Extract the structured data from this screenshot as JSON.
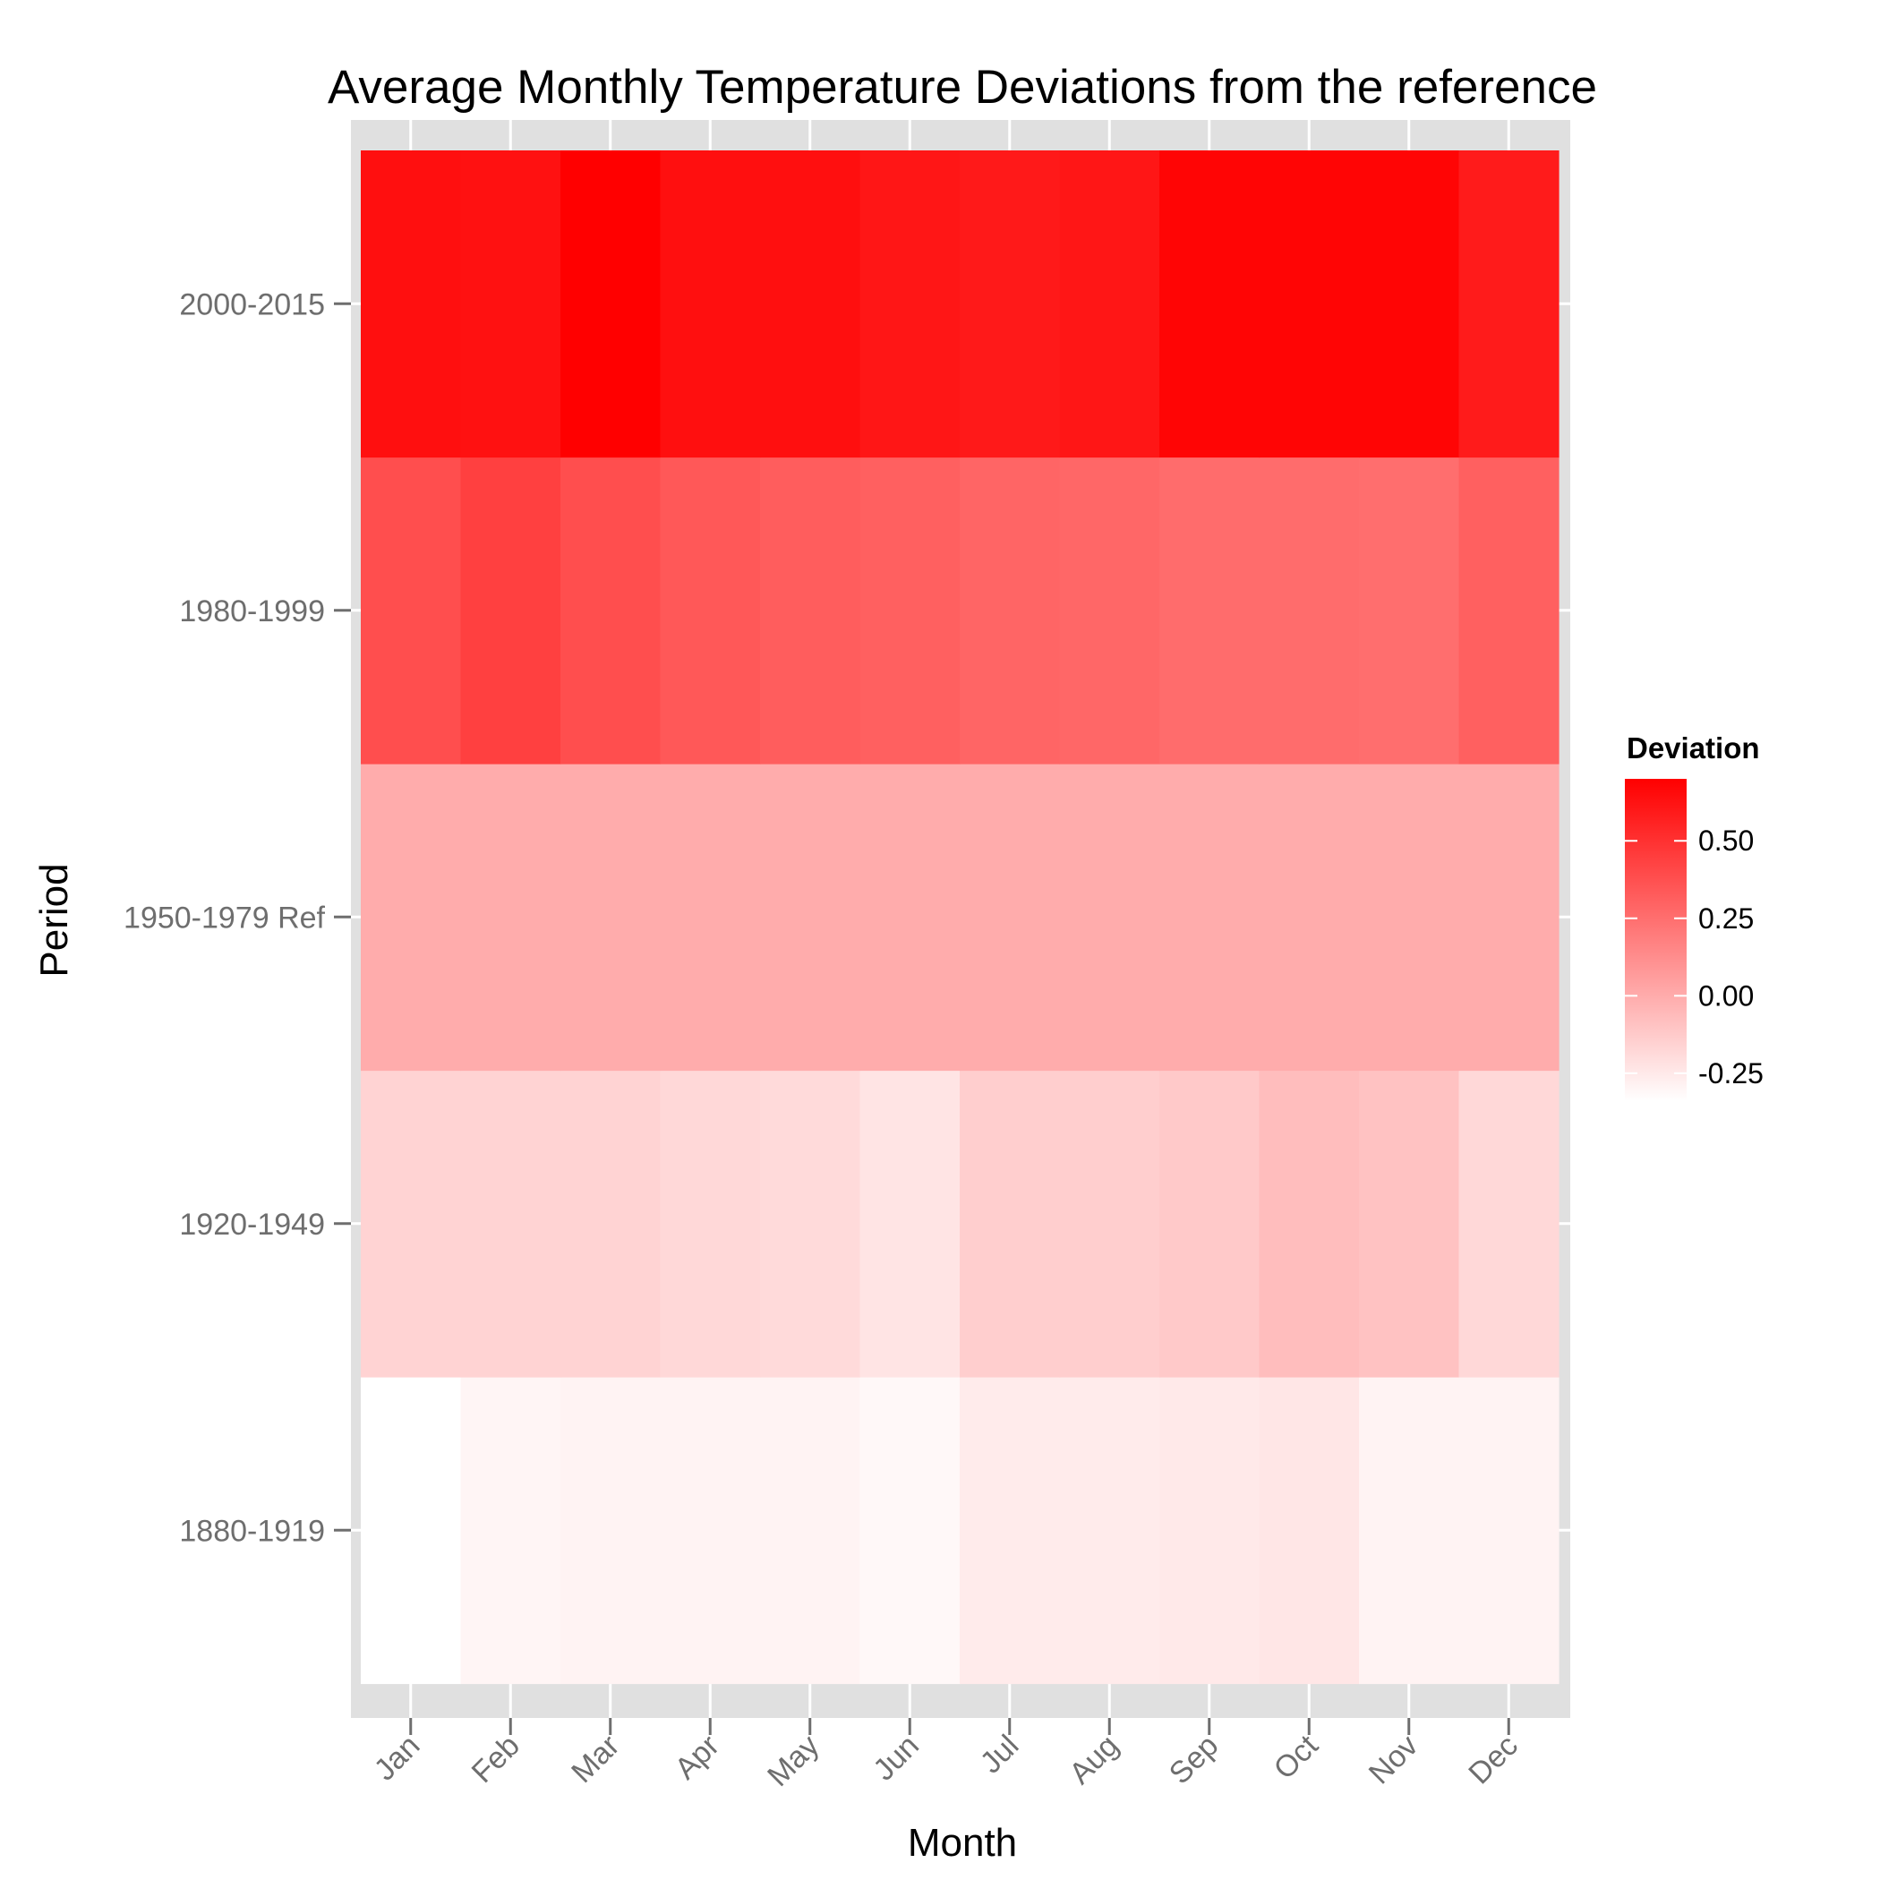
{
  "chart_data": {
    "type": "heatmap",
    "title": "Average Monthly Temperature Deviations from the reference",
    "xlabel": "Month",
    "ylabel": "Period",
    "x_categories": [
      "Jan",
      "Feb",
      "Mar",
      "Apr",
      "May",
      "Jun",
      "Jul",
      "Aug",
      "Sep",
      "Oct",
      "Nov",
      "Dec"
    ],
    "y_categories": [
      "1880-1919",
      "1920-1949",
      "1950-1979 Ref",
      "1980-1999",
      "2000-2015"
    ],
    "values": [
      [
        -0.34,
        -0.3,
        -0.29,
        -0.29,
        -0.29,
        -0.31,
        -0.26,
        -0.26,
        -0.25,
        -0.24,
        -0.29,
        -0.29
      ],
      [
        -0.16,
        -0.16,
        -0.16,
        -0.18,
        -0.19,
        -0.23,
        -0.14,
        -0.14,
        -0.12,
        -0.07,
        -0.09,
        -0.18
      ],
      [
        0.0,
        0.0,
        0.0,
        0.0,
        0.0,
        0.0,
        0.0,
        0.0,
        0.0,
        0.0,
        0.0,
        0.0
      ],
      [
        0.38,
        0.44,
        0.38,
        0.34,
        0.32,
        0.31,
        0.29,
        0.28,
        0.26,
        0.26,
        0.25,
        0.31
      ],
      [
        0.64,
        0.63,
        0.7,
        0.64,
        0.64,
        0.61,
        0.6,
        0.61,
        0.68,
        0.68,
        0.68,
        0.59
      ]
    ],
    "color_scale": {
      "low": "#ffffff",
      "high": "#ff0000",
      "min": -0.34,
      "max": 0.7
    },
    "legend": {
      "title": "Deviation",
      "position": "right",
      "breaks": [
        0.5,
        0.25,
        0.0,
        -0.25
      ],
      "labels": [
        "0.50",
        "0.25",
        "0.00",
        "-0.25"
      ]
    },
    "panel_background": "#e0e0e0",
    "grid": true
  }
}
